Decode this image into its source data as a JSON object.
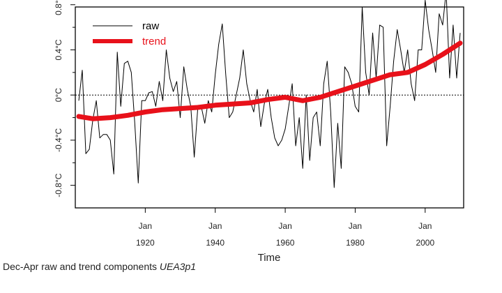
{
  "chart_data": {
    "type": "line",
    "xlabel": "Time",
    "ylabel": "",
    "xlim": [
      1900,
      2011
    ],
    "ylim": [
      -1.0,
      0.78
    ],
    "y_ticks": [
      -0.8,
      -0.4,
      0,
      0.4,
      0.8
    ],
    "y_tick_labels": [
      "-0.8°C",
      "-0.4°C",
      "0°C",
      "0.4°C",
      "0.8°C"
    ],
    "y_tick_minor": [
      -0.6,
      -0.2,
      0.2,
      0.6
    ],
    "x_ticks": [
      1920,
      1940,
      1960,
      1980,
      2000
    ],
    "x_tick_month": "Jan",
    "x_tick_labels": [
      "1920",
      "1940",
      "1960",
      "1980",
      "2000"
    ],
    "zero_line": true,
    "grid": false,
    "legend_position": "top-left",
    "series": [
      {
        "name": "raw",
        "color": "#000000",
        "x": [
          1901,
          1902,
          1903,
          1904,
          1905,
          1906,
          1907,
          1908,
          1909,
          1910,
          1911,
          1912,
          1913,
          1914,
          1915,
          1916,
          1917,
          1918,
          1919,
          1920,
          1921,
          1922,
          1923,
          1924,
          1925,
          1926,
          1927,
          1928,
          1929,
          1930,
          1931,
          1932,
          1933,
          1934,
          1935,
          1936,
          1937,
          1938,
          1939,
          1940,
          1941,
          1942,
          1943,
          1944,
          1945,
          1946,
          1947,
          1948,
          1949,
          1950,
          1951,
          1952,
          1953,
          1954,
          1955,
          1956,
          1957,
          1958,
          1959,
          1960,
          1961,
          1962,
          1963,
          1964,
          1965,
          1966,
          1967,
          1968,
          1969,
          1970,
          1971,
          1972,
          1973,
          1974,
          1975,
          1976,
          1977,
          1978,
          1979,
          1980,
          1981,
          1982,
          1983,
          1984,
          1985,
          1986,
          1987,
          1988,
          1989,
          1990,
          1991,
          1992,
          1993,
          1994,
          1995,
          1996,
          1997,
          1998,
          1999,
          2000,
          2001,
          2002,
          2003,
          2004,
          2005,
          2006,
          2007,
          2008,
          2009,
          2010
        ],
        "values": [
          -0.05,
          0.22,
          -0.52,
          -0.48,
          -0.22,
          -0.05,
          -0.38,
          -0.35,
          -0.35,
          -0.4,
          -0.7,
          0.38,
          -0.1,
          0.28,
          0.3,
          0.2,
          -0.25,
          -0.78,
          -0.05,
          -0.05,
          0.02,
          0.03,
          -0.1,
          0.12,
          -0.05,
          0.4,
          0.15,
          0.03,
          0.12,
          -0.2,
          0.25,
          0.05,
          -0.1,
          -0.55,
          -0.12,
          -0.1,
          -0.25,
          -0.05,
          -0.15,
          0.18,
          0.45,
          0.63,
          0.18,
          -0.2,
          -0.15,
          0.0,
          0.15,
          0.4,
          0.1,
          -0.05,
          -0.15,
          0.05,
          -0.28,
          -0.08,
          0.05,
          -0.2,
          -0.38,
          -0.45,
          -0.4,
          -0.3,
          -0.1,
          0.1,
          -0.45,
          -0.2,
          -0.65,
          0.0,
          -0.58,
          -0.2,
          -0.15,
          -0.45,
          0.1,
          0.3,
          -0.15,
          -0.82,
          -0.25,
          -0.65,
          0.25,
          0.2,
          0.1,
          -0.1,
          -0.15,
          0.78,
          0.2,
          0.0,
          0.55,
          0.15,
          0.62,
          0.6,
          -0.45,
          -0.1,
          0.3,
          0.58,
          0.4,
          0.2,
          0.4,
          0.1,
          -0.05,
          0.4,
          0.4,
          0.84,
          0.58,
          0.4,
          0.2,
          0.72,
          0.62,
          0.92,
          0.15,
          0.62,
          0.15,
          0.55
        ]
      },
      {
        "name": "trend",
        "color": "#e8111a",
        "x": [
          1901,
          1905,
          1910,
          1915,
          1920,
          1925,
          1930,
          1935,
          1940,
          1945,
          1950,
          1955,
          1960,
          1965,
          1970,
          1975,
          1980,
          1985,
          1990,
          1995,
          2000,
          2005,
          2010
        ],
        "values": [
          -0.19,
          -0.21,
          -0.2,
          -0.18,
          -0.15,
          -0.13,
          -0.12,
          -0.11,
          -0.09,
          -0.08,
          -0.07,
          -0.04,
          -0.02,
          -0.05,
          -0.02,
          0.03,
          0.08,
          0.13,
          0.18,
          0.2,
          0.27,
          0.36,
          0.46
        ]
      }
    ]
  },
  "caption": {
    "prefix": "Dec-Apr  raw and trend components",
    "source": "UEA3p1"
  }
}
